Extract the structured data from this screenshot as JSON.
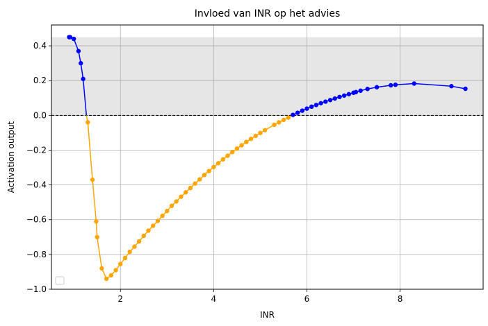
{
  "chart_data": {
    "type": "line",
    "title": "Invloed van INR op het advies",
    "xlabel": "INR",
    "ylabel": "Activation output",
    "xlim": [
      0.52,
      9.78
    ],
    "ylim": [
      -1.0,
      0.52
    ],
    "xticks": [
      2,
      4,
      6,
      8
    ],
    "yticks": [
      -1.0,
      -0.8,
      -0.6,
      -0.4,
      -0.2,
      0.0,
      0.2,
      0.4
    ],
    "xtick_labels": [
      "2",
      "4",
      "6",
      "8"
    ],
    "ytick_labels": [
      "−1.0",
      "−0.8",
      "−0.6",
      "−0.4",
      "−0.2",
      "0.0",
      "0.2",
      "0.4"
    ],
    "grid": true,
    "legend": "lower-left (empty)",
    "shaded_band": {
      "y_from": 0.0,
      "y_to": 0.45,
      "color": "#e6e6e6"
    },
    "zero_line": {
      "y": 0.0,
      "style": "dashed",
      "color": "#000000"
    },
    "colors": {
      "positive": "#0000ff",
      "negative": "#ffa500",
      "grid": "#b0b0b0"
    },
    "series": [
      {
        "color": "#0000ff",
        "points": [
          [
            0.9,
            0.45
          ],
          [
            0.92,
            0.45
          ],
          [
            1.0,
            0.44
          ],
          [
            1.1,
            0.37
          ],
          [
            1.15,
            0.3
          ],
          [
            1.2,
            0.21
          ],
          [
            1.27,
            0.0
          ]
        ]
      },
      {
        "color": "#ffa500",
        "points": [
          [
            1.27,
            0.0
          ],
          [
            1.3,
            -0.04
          ],
          [
            1.4,
            -0.37
          ],
          [
            1.48,
            -0.61
          ],
          [
            1.5,
            -0.7
          ],
          [
            1.6,
            -0.88
          ],
          [
            1.7,
            -0.94
          ],
          [
            1.8,
            -0.92
          ],
          [
            1.9,
            -0.89
          ],
          [
            2.0,
            -0.855
          ],
          [
            2.1,
            -0.82
          ],
          [
            2.2,
            -0.785
          ],
          [
            2.3,
            -0.755
          ],
          [
            2.4,
            -0.725
          ],
          [
            2.5,
            -0.693
          ],
          [
            2.6,
            -0.663
          ],
          [
            2.7,
            -0.635
          ],
          [
            2.8,
            -0.607
          ],
          [
            2.9,
            -0.578
          ],
          [
            3.0,
            -0.55
          ],
          [
            3.1,
            -0.52
          ],
          [
            3.2,
            -0.495
          ],
          [
            3.3,
            -0.468
          ],
          [
            3.4,
            -0.443
          ],
          [
            3.5,
            -0.418
          ],
          [
            3.6,
            -0.392
          ],
          [
            3.7,
            -0.368
          ],
          [
            3.8,
            -0.343
          ],
          [
            3.9,
            -0.32
          ],
          [
            4.0,
            -0.297
          ],
          [
            4.1,
            -0.275
          ],
          [
            4.2,
            -0.253
          ],
          [
            4.3,
            -0.232
          ],
          [
            4.4,
            -0.211
          ],
          [
            4.5,
            -0.191
          ],
          [
            4.6,
            -0.172
          ],
          [
            4.7,
            -0.153
          ],
          [
            4.8,
            -0.135
          ],
          [
            4.9,
            -0.118
          ],
          [
            5.0,
            -0.101
          ],
          [
            5.1,
            -0.085
          ],
          [
            5.3,
            -0.054
          ],
          [
            5.4,
            -0.04
          ],
          [
            5.5,
            -0.026
          ],
          [
            5.6,
            -0.013
          ],
          [
            5.68,
            0.0
          ]
        ]
      },
      {
        "color": "#0000ff",
        "points": [
          [
            5.68,
            0.0
          ],
          [
            5.7,
            0.003
          ],
          [
            5.8,
            0.015
          ],
          [
            5.9,
            0.027
          ],
          [
            6.0,
            0.039
          ],
          [
            6.1,
            0.05
          ],
          [
            6.2,
            0.06
          ],
          [
            6.3,
            0.07
          ],
          [
            6.4,
            0.079
          ],
          [
            6.5,
            0.088
          ],
          [
            6.6,
            0.097
          ],
          [
            6.7,
            0.106
          ],
          [
            6.8,
            0.114
          ],
          [
            6.9,
            0.122
          ],
          [
            7.0,
            0.13
          ],
          [
            7.05,
            0.134
          ],
          [
            7.15,
            0.142
          ],
          [
            7.3,
            0.152
          ],
          [
            7.5,
            0.162
          ],
          [
            7.8,
            0.173
          ],
          [
            7.9,
            0.176
          ],
          [
            8.3,
            0.183
          ],
          [
            9.1,
            0.168
          ],
          [
            9.4,
            0.153
          ]
        ]
      }
    ]
  }
}
